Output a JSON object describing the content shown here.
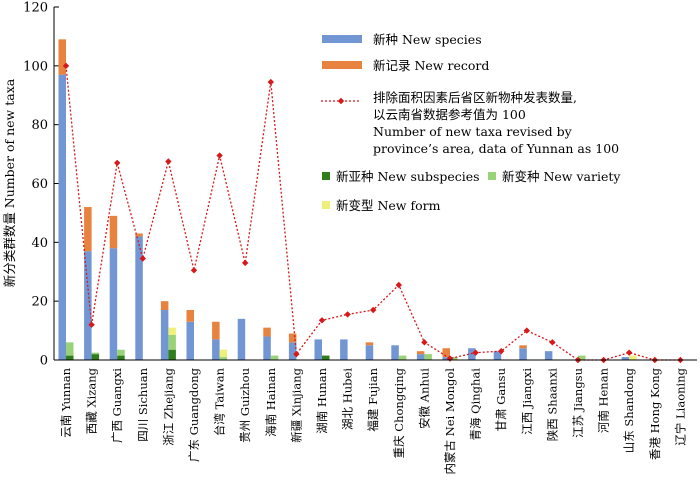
{
  "chart_data": {
    "type": "bar",
    "title": "",
    "xlabel": "",
    "ylabel": "新分类群数量 Number of new taxa",
    "ylim": [
      0,
      120
    ],
    "yticks": [
      0,
      20,
      40,
      60,
      80,
      100,
      120
    ],
    "grid": false,
    "legend_position": "top-right",
    "categories": [
      "云南 Yunnan",
      "西藏 Xizang",
      "广西 Guangxi",
      "四川 Sichuan",
      "浙江 Zhejiang",
      "广东 Guangdong",
      "台湾 Taiwan",
      "贵州 Guizhou",
      "海南 Hainan",
      "新疆 Xinjiang",
      "湖南 Hunan",
      "湖北 Hubei",
      "福建 Fujian",
      "重庆 Chongqing",
      "安徽 Anhui",
      "内蒙古 Nei Mongol",
      "青海 Qinghai",
      "甘肃 Gansu",
      "江西 Jiangxi",
      "陕西 Shaanxi",
      "江苏 Jiangsu",
      "河南 Henan",
      "山东 Shandong",
      "香港 Hong Kong",
      "辽宁 Liaoning"
    ],
    "series": [
      {
        "name": "新种 New species",
        "kind": "bar",
        "group": "main",
        "color": "#7196d3",
        "values": [
          97,
          37,
          38,
          42,
          17,
          13,
          7,
          14,
          8,
          6,
          7,
          7,
          5,
          5,
          2,
          1,
          4,
          3,
          4,
          3,
          0,
          0,
          1,
          0,
          0
        ]
      },
      {
        "name": "新记录 New record",
        "kind": "bar",
        "group": "main",
        "color": "#e8823f",
        "values": [
          12,
          15,
          11,
          1,
          3,
          4,
          6,
          0,
          3,
          3,
          0,
          0,
          1,
          0,
          1,
          3,
          0,
          0,
          1,
          0,
          0,
          0,
          0,
          0,
          0
        ]
      },
      {
        "name": "新亚种 New subspecies",
        "kind": "bar",
        "group": "sub",
        "color": "#2f7d1c",
        "values": [
          1.5,
          2,
          1.5,
          0,
          3.5,
          0,
          0,
          0,
          0,
          0,
          1.5,
          0,
          0,
          0,
          0,
          0,
          0,
          0,
          0,
          0,
          0,
          0,
          0,
          0,
          0
        ]
      },
      {
        "name": "新变种 New variety",
        "kind": "bar",
        "group": "sub",
        "color": "#9ad27a",
        "values": [
          4.5,
          0.5,
          2,
          0,
          5,
          0,
          1,
          0,
          1.5,
          0,
          0,
          0,
          0,
          1.5,
          2,
          1,
          0,
          0,
          0,
          0,
          1.5,
          0,
          0,
          0,
          0
        ]
      },
      {
        "name": "新变型 New form",
        "kind": "bar",
        "group": "sub",
        "color": "#eef07a",
        "values": [
          0,
          0,
          0,
          0,
          2.5,
          0,
          2.5,
          0,
          0,
          0,
          0,
          0,
          0,
          0,
          0,
          0,
          0,
          0,
          0,
          0,
          0,
          0,
          1.5,
          0,
          0
        ]
      },
      {
        "name_lines": [
          "排除面积因素后省区新物种发表数量,",
          "以云南省数据参考值为 100",
          "Number of new taxa revised by",
          "province’s area, data of Yunnan as 100"
        ],
        "kind": "line",
        "color": "#d7191c",
        "values": [
          100,
          12,
          67,
          34.5,
          67.5,
          30.5,
          69.5,
          33,
          94.5,
          2,
          13.5,
          15.5,
          17,
          25.5,
          6,
          0.5,
          2.5,
          3,
          10,
          6,
          0,
          0,
          2.5,
          0,
          0
        ]
      }
    ]
  }
}
